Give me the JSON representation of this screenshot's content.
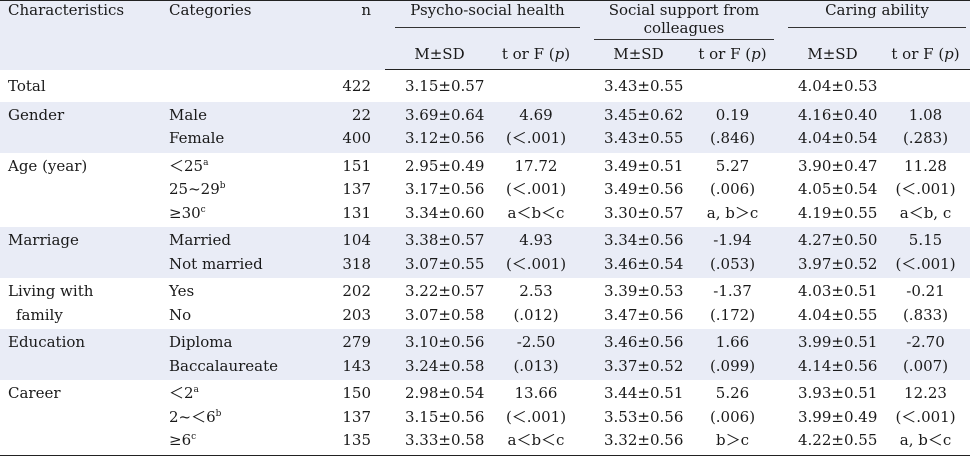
{
  "headers": {
    "characteristics": "Characteristics",
    "categories": "Categories",
    "n": "n",
    "psycho": "Psycho-social health",
    "support_line1": "Social support from",
    "support_line2": "colleagues",
    "caring": "Caring ability",
    "msd": "M±SD",
    "tf_prefix": "t or F (",
    "tf_p": "p",
    "tf_suffix": ")"
  },
  "rows": [
    {
      "char_lines": [
        "Total"
      ],
      "cats": [
        {
          "text": ""
        }
      ],
      "n": [
        "422"
      ],
      "psy_m": [
        "3.15±0.57"
      ],
      "psy_t": [
        ""
      ],
      "sup_m": [
        "3.43±0.55"
      ],
      "sup_t": [
        ""
      ],
      "car_m": [
        "4.04±0.53"
      ],
      "car_t": [
        ""
      ]
    },
    {
      "char_lines": [
        "Gender"
      ],
      "cats": [
        {
          "text": "Male"
        },
        {
          "text": "Female"
        }
      ],
      "n": [
        "22",
        "400"
      ],
      "psy_m": [
        "3.69±0.64",
        "3.12±0.56"
      ],
      "psy_t": [
        "4.69",
        "(＜.001)"
      ],
      "sup_m": [
        "3.45±0.62",
        "3.43±0.55"
      ],
      "sup_t": [
        "0.19",
        "(.846)"
      ],
      "car_m": [
        "4.16±0.40",
        "4.04±0.54"
      ],
      "car_t": [
        "1.08",
        "(.283)"
      ]
    },
    {
      "char_lines": [
        "Age (year)"
      ],
      "cats": [
        {
          "text": "＜25",
          "sup": "a"
        },
        {
          "text": "25~29",
          "sup": "b"
        },
        {
          "text": "≥30",
          "sup": "c"
        }
      ],
      "n": [
        "151",
        "137",
        "131"
      ],
      "psy_m": [
        "2.95±0.49",
        "3.17±0.56",
        "3.34±0.60"
      ],
      "psy_t": [
        "17.72",
        "(＜.001)",
        "a＜b＜c"
      ],
      "sup_m": [
        "3.49±0.51",
        "3.49±0.56",
        "3.30±0.57"
      ],
      "sup_t": [
        "5.27",
        "(.006)",
        "a, b＞c"
      ],
      "car_m": [
        "3.90±0.47",
        "4.05±0.54",
        "4.19±0.55"
      ],
      "car_t": [
        "11.28",
        "(＜.001)",
        "a＜b, c"
      ]
    },
    {
      "char_lines": [
        "Marriage"
      ],
      "cats": [
        {
          "text": "Married"
        },
        {
          "text": "Not married"
        }
      ],
      "n": [
        "104",
        "318"
      ],
      "psy_m": [
        "3.38±0.57",
        "3.07±0.55"
      ],
      "psy_t": [
        "4.93",
        "(＜.001)"
      ],
      "sup_m": [
        "3.34±0.56",
        "3.46±0.54"
      ],
      "sup_t": [
        "-1.94",
        "(.053)"
      ],
      "car_m": [
        "4.27±0.50",
        "3.97±0.52"
      ],
      "car_t": [
        "5.15",
        "(＜.001)"
      ]
    },
    {
      "char_lines": [
        "Living with",
        "family"
      ],
      "cats": [
        {
          "text": "Yes"
        },
        {
          "text": "No"
        }
      ],
      "n": [
        "202",
        "203"
      ],
      "psy_m": [
        "3.22±0.57",
        "3.07±0.58"
      ],
      "psy_t": [
        "2.53",
        "(.012)"
      ],
      "sup_m": [
        "3.39±0.53",
        "3.47±0.56"
      ],
      "sup_t": [
        "-1.37",
        "(.172)"
      ],
      "car_m": [
        "4.03±0.51",
        "4.04±0.55"
      ],
      "car_t": [
        "-0.21",
        "(.833)"
      ]
    },
    {
      "char_lines": [
        "Education"
      ],
      "cats": [
        {
          "text": "Diploma"
        },
        {
          "text": "Baccalaureate"
        }
      ],
      "n": [
        "279",
        "143"
      ],
      "psy_m": [
        "3.10±0.56",
        "3.24±0.58"
      ],
      "psy_t": [
        "-2.50",
        "(.013)"
      ],
      "sup_m": [
        "3.46±0.56",
        "3.37±0.52"
      ],
      "sup_t": [
        "1.66",
        "(.099)"
      ],
      "car_m": [
        "3.99±0.51",
        "4.14±0.56"
      ],
      "car_t": [
        "-2.70",
        "(.007)"
      ]
    },
    {
      "char_lines": [
        "Career"
      ],
      "cats": [
        {
          "text": "＜2",
          "sup": "a"
        },
        {
          "text": "2~＜6",
          "sup": "b"
        },
        {
          "text": "≥6",
          "sup": "c"
        }
      ],
      "n": [
        "150",
        "137",
        "135"
      ],
      "psy_m": [
        "2.98±0.54",
        "3.15±0.56",
        "3.33±0.58"
      ],
      "psy_t": [
        "13.66",
        "(＜.001)",
        "a＜b＜c"
      ],
      "sup_m": [
        "3.44±0.51",
        "3.53±0.56",
        "3.32±0.56"
      ],
      "sup_t": [
        "5.26",
        "(.006)",
        "b＞c"
      ],
      "car_m": [
        "3.93±0.51",
        "3.99±0.49",
        "4.22±0.55"
      ],
      "car_t": [
        "12.23",
        "(＜.001)",
        "a, b＜c"
      ]
    }
  ]
}
